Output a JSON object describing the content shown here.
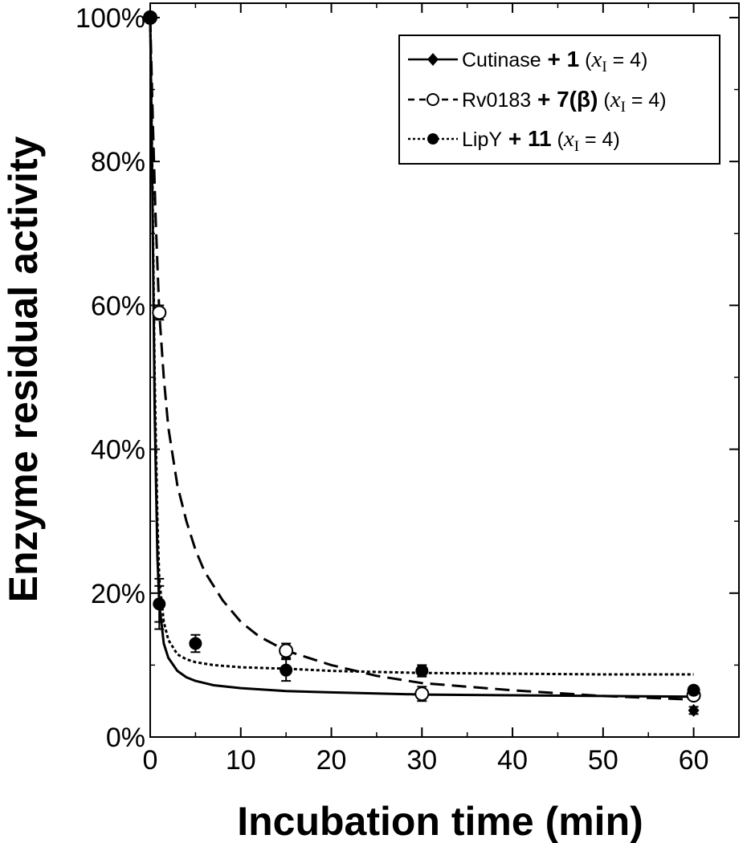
{
  "chart_data": {
    "type": "line",
    "xlabel": "Incubation time (min)",
    "ylabel": "Enzyme residual activity",
    "xlim": [
      0,
      65
    ],
    "ylim": [
      0,
      102
    ],
    "x_ticks": [
      "0",
      "10",
      "20",
      "30",
      "40",
      "50",
      "60"
    ],
    "y_ticks": [
      "0%",
      "20%",
      "40%",
      "60%",
      "80%",
      "100%"
    ],
    "legend_position": "top-right",
    "grid": false,
    "series": [
      {
        "enzyme": "Cutinase",
        "inhibitor": "1",
        "condition_var": "x",
        "condition_sub": "I",
        "condition_val": "= 4",
        "marker": "filled-diamond",
        "line_style": "solid",
        "points": [
          {
            "x": 0,
            "y": 100,
            "err": 0.5
          },
          {
            "x": 1,
            "y": 18.5,
            "err": 2.5
          },
          {
            "x": 60,
            "y": 3.7,
            "err": 0.5
          }
        ],
        "fit_curve": [
          [
            0,
            100
          ],
          [
            0.2,
            80
          ],
          [
            0.5,
            45
          ],
          [
            0.8,
            25
          ],
          [
            1,
            18.5
          ],
          [
            1.5,
            13
          ],
          [
            2,
            11
          ],
          [
            3,
            9.2
          ],
          [
            4,
            8.3
          ],
          [
            5,
            7.8
          ],
          [
            7,
            7.2
          ],
          [
            10,
            6.8
          ],
          [
            15,
            6.4
          ],
          [
            20,
            6.2
          ],
          [
            30,
            5.9
          ],
          [
            40,
            5.8
          ],
          [
            50,
            5.7
          ],
          [
            60,
            5.6
          ]
        ]
      },
      {
        "enzyme": "Rv0183",
        "inhibitor": "7(β)",
        "condition_var": "x",
        "condition_sub": "I",
        "condition_val": "= 4",
        "marker": "open-circle",
        "line_style": "dashed",
        "points": [
          {
            "x": 0,
            "y": 100,
            "err": 0.5
          },
          {
            "x": 1,
            "y": 59,
            "err": 1
          },
          {
            "x": 15,
            "y": 12,
            "err": 1
          },
          {
            "x": 30,
            "y": 6,
            "err": 1
          },
          {
            "x": 60,
            "y": 5.8,
            "err": 0.5
          }
        ],
        "fit_curve": [
          [
            0,
            100
          ],
          [
            0.3,
            85
          ],
          [
            0.6,
            72
          ],
          [
            1,
            59
          ],
          [
            1.5,
            50
          ],
          [
            2,
            43
          ],
          [
            3,
            35
          ],
          [
            4,
            30
          ],
          [
            5,
            26
          ],
          [
            6,
            23
          ],
          [
            8,
            19
          ],
          [
            10,
            16
          ],
          [
            12,
            14
          ],
          [
            15,
            12
          ],
          [
            20,
            10
          ],
          [
            25,
            8.5
          ],
          [
            30,
            7.5
          ],
          [
            40,
            6.5
          ],
          [
            50,
            5.7
          ],
          [
            60,
            5.2
          ]
        ]
      },
      {
        "enzyme": "LipY",
        "inhibitor": "11",
        "condition_var": "x",
        "condition_sub": "I",
        "condition_val": "= 4",
        "marker": "filled-circle",
        "line_style": "dotted",
        "points": [
          {
            "x": 0,
            "y": 100,
            "err": 0.5
          },
          {
            "x": 1,
            "y": 18.5,
            "err": 3.5
          },
          {
            "x": 5,
            "y": 13,
            "err": 1.2
          },
          {
            "x": 15,
            "y": 9.3,
            "err": 1.5
          },
          {
            "x": 30,
            "y": 9.2,
            "err": 0.8
          },
          {
            "x": 60,
            "y": 6.5,
            "err": 0.5
          }
        ],
        "fit_curve": [
          [
            0,
            100
          ],
          [
            0.2,
            82
          ],
          [
            0.5,
            50
          ],
          [
            0.8,
            30
          ],
          [
            1,
            22
          ],
          [
            1.5,
            16
          ],
          [
            2,
            13.5
          ],
          [
            3,
            11.5
          ],
          [
            4,
            10.8
          ],
          [
            5,
            10.4
          ],
          [
            7,
            10
          ],
          [
            10,
            9.7
          ],
          [
            15,
            9.5
          ],
          [
            20,
            9.2
          ],
          [
            30,
            8.9
          ],
          [
            40,
            8.8
          ],
          [
            50,
            8.7
          ],
          [
            60,
            8.7
          ]
        ]
      }
    ]
  }
}
